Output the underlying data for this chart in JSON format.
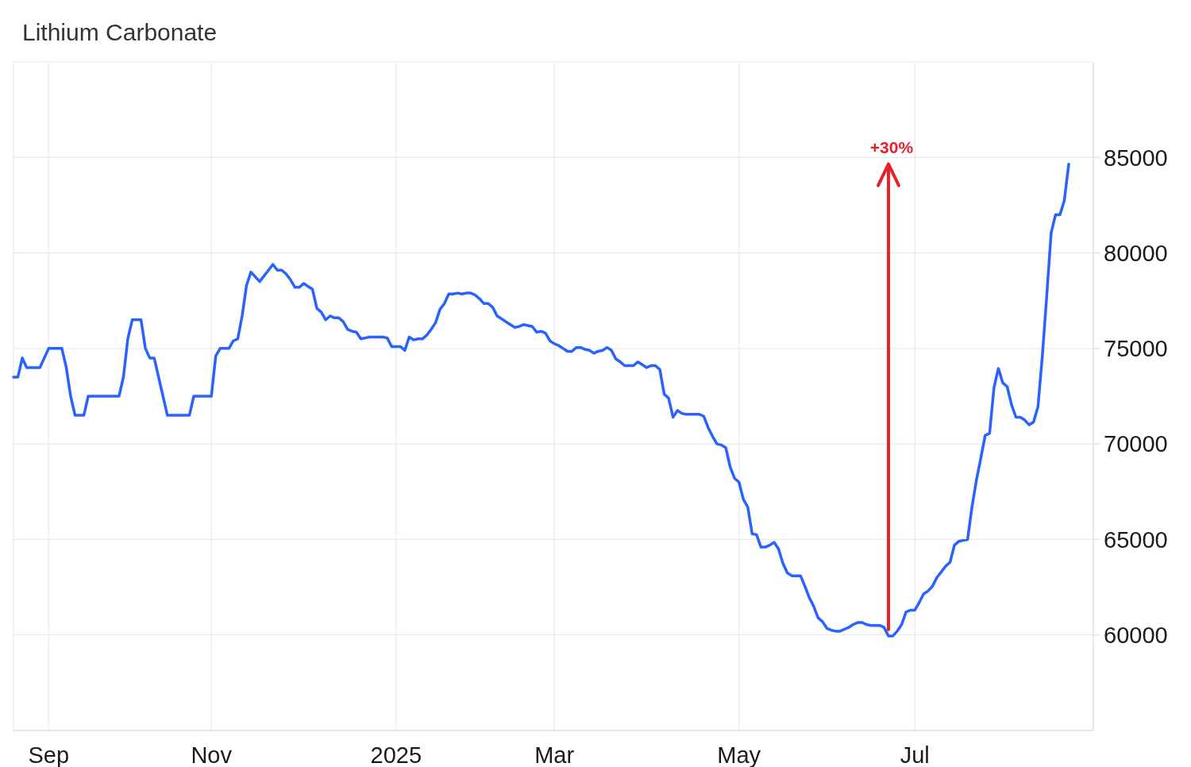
{
  "chart_data": {
    "type": "line",
    "title": "Lithium Carbonate",
    "categories": [
      null,
      null,
      null,
      null,
      null,
      null,
      null,
      null,
      "Sep",
      null,
      null,
      null,
      null,
      null,
      null,
      null,
      null,
      null,
      null,
      null,
      null,
      null,
      null,
      null,
      null,
      null,
      null,
      null,
      null,
      null,
      null,
      null,
      null,
      null,
      null,
      null,
      null,
      null,
      null,
      null,
      null,
      null,
      null,
      null,
      null,
      "Nov",
      null,
      null,
      null,
      null,
      null,
      null,
      null,
      null,
      null,
      null,
      null,
      null,
      null,
      null,
      null,
      null,
      null,
      null,
      null,
      null,
      null,
      null,
      null,
      null,
      null,
      null,
      null,
      null,
      null,
      null,
      null,
      null,
      null,
      null,
      null,
      null,
      null,
      null,
      null,
      null,
      null,
      "2025",
      null,
      null,
      null,
      null,
      null,
      null,
      null,
      null,
      null,
      null,
      null,
      null,
      null,
      null,
      null,
      null,
      null,
      null,
      null,
      null,
      null,
      null,
      null,
      null,
      null,
      null,
      null,
      null,
      null,
      null,
      null,
      null,
      null,
      null,
      null,
      "Mar",
      null,
      null,
      null,
      null,
      null,
      null,
      null,
      null,
      null,
      null,
      null,
      null,
      null,
      null,
      null,
      null,
      null,
      null,
      null,
      null,
      null,
      null,
      null,
      null,
      null,
      null,
      null,
      null,
      null,
      null,
      null,
      null,
      null,
      null,
      null,
      null,
      null,
      null,
      null,
      null,
      null,
      "May",
      null,
      null,
      null,
      null,
      null,
      null,
      null,
      null,
      null,
      null,
      null,
      null,
      null,
      null,
      null,
      null,
      null,
      null,
      null,
      null,
      null,
      null,
      null,
      null,
      null,
      null,
      null,
      null,
      null,
      null,
      null,
      null,
      null,
      null,
      null,
      null,
      null,
      null,
      null,
      "Jul",
      null,
      null,
      null,
      null,
      null,
      null,
      null,
      null,
      null,
      null,
      null,
      null,
      null,
      null,
      null,
      null,
      null,
      null,
      null,
      null,
      null,
      null,
      null,
      null,
      null,
      null,
      null,
      null,
      null,
      null,
      null,
      null,
      null,
      null,
      null
    ],
    "series": [
      {
        "color": "#2962ff",
        "values": [
          73500,
          73500,
          74500,
          74000,
          74000,
          74000,
          74000,
          74500,
          75000,
          75000,
          75000,
          75000,
          74000,
          72500,
          71500,
          71500,
          71500,
          72500,
          72500,
          72500,
          72500,
          72500,
          72500,
          72500,
          72500,
          73500,
          75500,
          76500,
          76500,
          76500,
          75000,
          74500,
          74500,
          73500,
          72500,
          71500,
          71500,
          71500,
          71500,
          71500,
          71500,
          72500,
          72500,
          72500,
          72500,
          72500,
          74600,
          75000,
          75000,
          75000,
          75400,
          75500,
          76700,
          78300,
          79000,
          78750,
          78500,
          78800,
          79100,
          79400,
          79100,
          79100,
          78900,
          78600,
          78200,
          78200,
          78400,
          78250,
          78100,
          77100,
          76900,
          76500,
          76700,
          76600,
          76600,
          76400,
          76000,
          75900,
          75850,
          75500,
          75550,
          75600,
          75600,
          75600,
          75600,
          75550,
          75100,
          75100,
          75100,
          74900,
          75600,
          75450,
          75500,
          75500,
          75700,
          76000,
          76350,
          77050,
          77350,
          77850,
          77850,
          77900,
          77850,
          77900,
          77900,
          77800,
          77600,
          77350,
          77350,
          77150,
          76700,
          76550,
          76400,
          76250,
          76100,
          76150,
          76250,
          76200,
          76150,
          75850,
          75900,
          75800,
          75400,
          75250,
          75150,
          75000,
          74850,
          74850,
          75050,
          75050,
          74950,
          74900,
          74750,
          74850,
          74900,
          75050,
          74900,
          74450,
          74300,
          74100,
          74100,
          74100,
          74300,
          74150,
          74000,
          74100,
          74100,
          73900,
          72600,
          72400,
          71400,
          71750,
          71600,
          71550,
          71550,
          71550,
          71550,
          71450,
          70850,
          70400,
          70000,
          69950,
          69800,
          68800,
          68200,
          68000,
          67100,
          66700,
          65300,
          65250,
          64600,
          64600,
          64700,
          64850,
          64500,
          63750,
          63250,
          63100,
          63100,
          63100,
          62550,
          61950,
          61500,
          60900,
          60700,
          60350,
          60250,
          60200,
          60200,
          60300,
          60400,
          60550,
          60650,
          60650,
          60550,
          60500,
          60500,
          60500,
          60400,
          59950,
          59950,
          60200,
          60550,
          61200,
          61300,
          61300,
          61700,
          62150,
          62300,
          62550,
          63000,
          63300,
          63600,
          63800,
          64700,
          64900,
          64950,
          65000,
          66700,
          68100,
          69250,
          70450,
          70550,
          72950,
          73950,
          73200,
          73000,
          72050,
          71400,
          71400,
          71250,
          71000,
          71150,
          71950,
          74600,
          77750,
          81050,
          82000,
          82000,
          82750,
          84650
        ]
      }
    ],
    "ylim": [
      55000,
      90000
    ],
    "yticks": [
      60000,
      65000,
      70000,
      75000,
      80000,
      85000
    ],
    "grid": true,
    "marker": "none",
    "line_style": "solid",
    "annotations": [
      "+30%"
    ]
  }
}
